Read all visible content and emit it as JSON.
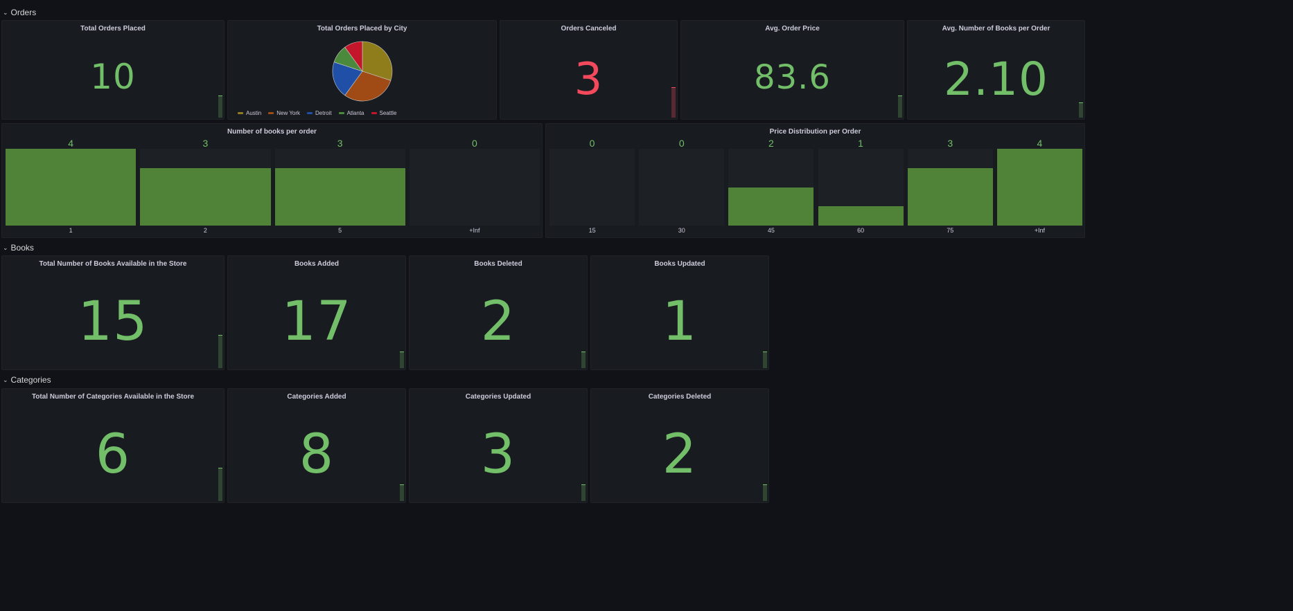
{
  "rows": {
    "orders": {
      "title": "Orders"
    },
    "books": {
      "title": "Books"
    },
    "categories": {
      "title": "Categories"
    }
  },
  "orders": {
    "total_orders": {
      "title": "Total Orders Placed",
      "value": "10"
    },
    "by_city": {
      "title": "Total Orders Placed by City"
    },
    "canceled": {
      "title": "Orders Canceled",
      "value": "3"
    },
    "avg_price": {
      "title": "Avg. Order Price",
      "value": "83.6"
    },
    "avg_books": {
      "title": "Avg. Number of Books per Order",
      "value": "2.10"
    },
    "books_per_order": {
      "title": "Number of books per order"
    },
    "price_dist": {
      "title": "Price Distribution per Order"
    }
  },
  "books": {
    "total": {
      "title": "Total Number of Books Available in the Store",
      "value": "15"
    },
    "added": {
      "title": "Books Added",
      "value": "17"
    },
    "deleted": {
      "title": "Books Deleted",
      "value": "2"
    },
    "updated": {
      "title": "Books Updated",
      "value": "1"
    }
  },
  "categories": {
    "total": {
      "title": "Total Number of Categories Available in the Store",
      "value": "6"
    },
    "added": {
      "title": "Categories Added",
      "value": "8"
    },
    "updated": {
      "title": "Categories Updated",
      "value": "3"
    },
    "deleted": {
      "title": "Categories Deleted",
      "value": "2"
    }
  },
  "colors": {
    "green": "#73bf69",
    "red": "#f2495c",
    "bar": "#508338"
  },
  "chart_data": [
    {
      "type": "pie",
      "title": "Total Orders Placed by City",
      "categories": [
        "Austin",
        "New York",
        "Detroit",
        "Atlanta",
        "Seattle"
      ],
      "values": [
        3,
        3,
        2,
        1,
        1
      ],
      "colors": [
        "#8f7c1a",
        "#a04b15",
        "#1f4fa6",
        "#4b8a3c",
        "#c4162a"
      ],
      "legend": "bottom"
    },
    {
      "type": "bar",
      "title": "Number of books per order",
      "categories": [
        "1",
        "2",
        "5",
        "+Inf"
      ],
      "values": [
        4,
        3,
        3,
        0
      ],
      "ylim": [
        0,
        4
      ]
    },
    {
      "type": "bar",
      "title": "Price Distribution per Order",
      "categories": [
        "15",
        "30",
        "45",
        "60",
        "75",
        "+Inf"
      ],
      "values": [
        0,
        0,
        2,
        1,
        3,
        4
      ],
      "ylim": [
        0,
        4
      ]
    }
  ]
}
